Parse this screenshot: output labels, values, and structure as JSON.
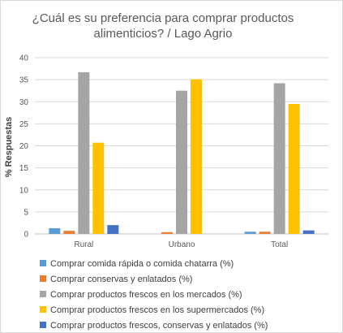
{
  "chart_data": {
    "type": "bar",
    "title_lines": [
      "¿Cuál es su preferencia para comprar productos",
      "alimenticios? / Lago Agrio"
    ],
    "ylabel": "% Respuestas",
    "xlabel": "",
    "ylim": [
      0,
      40
    ],
    "yticks": [
      0,
      5,
      10,
      15,
      20,
      25,
      30,
      35,
      40
    ],
    "grid": true,
    "legend_position": "bottom",
    "categories": [
      "Rural",
      "Urbano",
      "Total"
    ],
    "series": [
      {
        "name": "Comprar comida rápida o comida chatarra (%)",
        "color": "#5b9bd5",
        "values": [
          1.3,
          0,
          0.5
        ]
      },
      {
        "name": "Comprar conservas y enlatados (%)",
        "color": "#ed7d31",
        "values": [
          0.7,
          0.4,
          0.5
        ]
      },
      {
        "name": "Comprar productos frescos en los mercados (%)",
        "color": "#a5a5a5",
        "values": [
          36.7,
          32.5,
          34.2
        ]
      },
      {
        "name": "Comprar productos frescos en los supermercados (%)",
        "color": "#ffc000",
        "values": [
          20.7,
          35.1,
          29.5
        ]
      },
      {
        "name": "Comprar productos frescos, conservas y enlatados (%)",
        "color": "#4472c4",
        "values": [
          2.0,
          0,
          0.8
        ]
      }
    ]
  }
}
